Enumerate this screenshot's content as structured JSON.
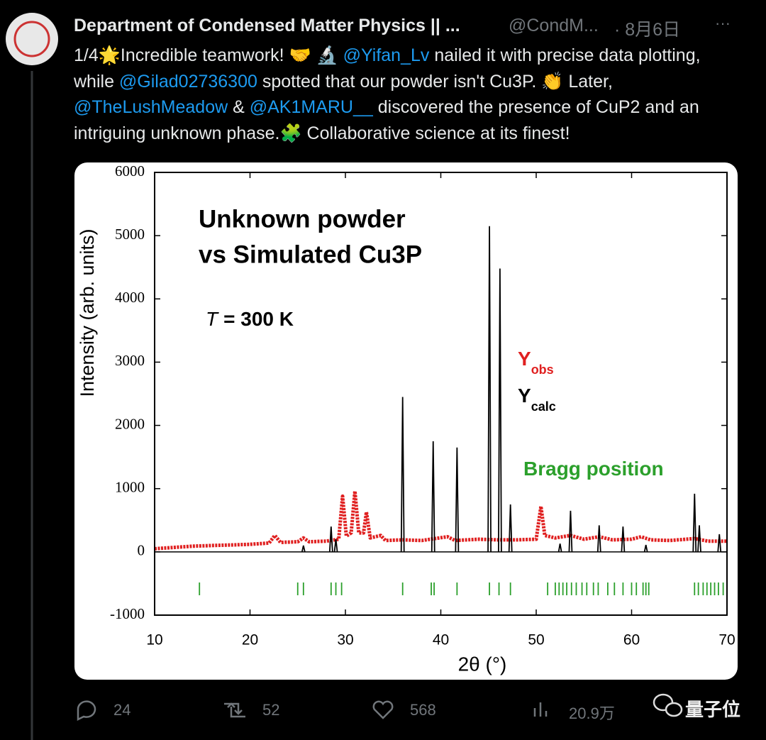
{
  "tweet": {
    "author_name": "Department of Condensed Matter Physics || ...",
    "handle": "@CondM...",
    "date": "· 8月6日",
    "more": "···",
    "text": [
      "1/4🌟Incredible teamwork! 🤝 🔬 ",
      "@Yifan_Lv",
      " nailed it with precise data plotting, while ",
      "@Gilad02736300",
      " spotted that our powder isn't Cu3P. 👏 Later, ",
      "@TheLushMeadow",
      " & ",
      "@AK1MARU__",
      " discovered the presence of CuP2 and an intriguing unknown phase.🧩 Collaborative science at its finest!"
    ],
    "stats": {
      "replies": 24,
      "retweets": 52,
      "likes": 568,
      "views": "20.9万"
    }
  },
  "watermark": "量子位",
  "chart_data": {
    "type": "line",
    "title": [
      "Unknown powder",
      "vs Simulated Cu3P"
    ],
    "temperature_symbol": "T",
    "temperature_text": "= 300 K",
    "x_label": "2θ (°)",
    "y_label": "Intensity (arb. units)",
    "xlim": [
      10,
      70
    ],
    "ylim": [
      -1000,
      6000
    ],
    "xticks": [
      10,
      20,
      30,
      40,
      50,
      60,
      70
    ],
    "yticks": [
      -1000,
      0,
      1000,
      2000,
      3000,
      4000,
      5000,
      6000
    ],
    "series": [
      {
        "name": "Y",
        "name_subscript": "obs",
        "color": "#e02020",
        "style": "line",
        "x": [
          10,
          12,
          14,
          16,
          18,
          20,
          22,
          22.6,
          23.2,
          25,
          25.6,
          26.2,
          28,
          29.3,
          29.7,
          30.1,
          30.6,
          31.0,
          31.4,
          31.9,
          32.2,
          32.6,
          33.7,
          34.2,
          36,
          38,
          40.7,
          41.5,
          44,
          46,
          48,
          50,
          50.5,
          50.9,
          52,
          53.6,
          55,
          56.6,
          58,
          60,
          61,
          62,
          64,
          66.6,
          68,
          70
        ],
        "values": [
          50,
          70,
          90,
          100,
          110,
          120,
          140,
          260,
          150,
          160,
          220,
          160,
          170,
          200,
          880,
          250,
          300,
          960,
          300,
          300,
          630,
          220,
          260,
          180,
          190,
          180,
          240,
          180,
          200,
          190,
          190,
          200,
          720,
          260,
          220,
          260,
          200,
          240,
          190,
          200,
          240,
          190,
          180,
          210,
          170,
          170
        ]
      },
      {
        "name": "Y",
        "name_subscript": "calc",
        "color": "#000000",
        "style": "stem",
        "x": [
          25.6,
          28.5,
          29.0,
          36.0,
          39.2,
          41.7,
          45.1,
          46.2,
          47.3,
          52.5,
          53.6,
          56.6,
          59.1,
          61.5,
          66.6,
          67.1,
          69.2
        ],
        "values": [
          100,
          400,
          200,
          2450,
          1750,
          1650,
          5150,
          4480,
          750,
          130,
          650,
          420,
          400,
          110,
          920,
          420,
          280
        ]
      },
      {
        "name": "Bragg position",
        "color": "#2ca02c",
        "style": "rug",
        "x": [
          14.7,
          25.0,
          25.6,
          28.5,
          29.0,
          29.6,
          36.0,
          39.0,
          39.3,
          41.7,
          45.1,
          46.1,
          47.3,
          51.2,
          52.0,
          52.4,
          52.8,
          53.2,
          53.7,
          54.2,
          54.8,
          55.3,
          56.0,
          56.5,
          57.5,
          58.2,
          59.1,
          60.0,
          60.5,
          61.2,
          61.5,
          61.8,
          66.6,
          67.0,
          67.5,
          67.9,
          68.3,
          68.7,
          69.1,
          69.6
        ]
      }
    ]
  }
}
